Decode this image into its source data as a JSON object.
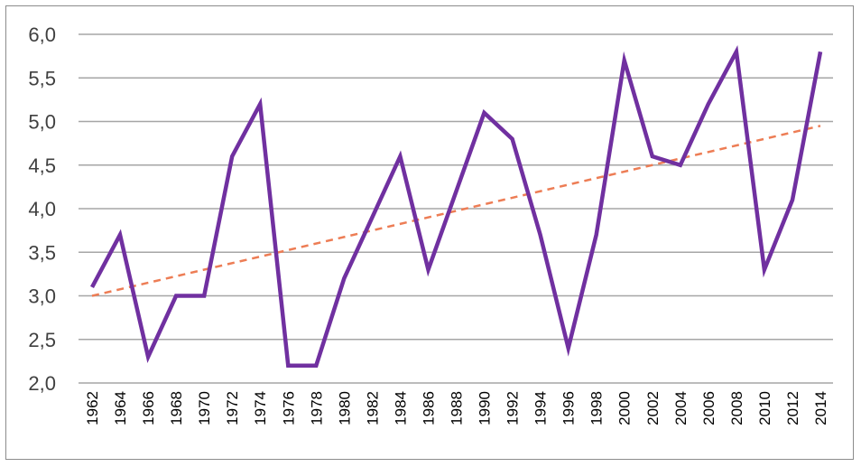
{
  "chart_data": {
    "type": "line",
    "title": "",
    "xlabel": "",
    "ylabel": "",
    "ylim": [
      2.0,
      6.0
    ],
    "y_ticks": [
      "2,0",
      "2,5",
      "3,0",
      "3,5",
      "4,0",
      "4,5",
      "5,0",
      "5,5",
      "6,0"
    ],
    "x_tick_labels": [
      "1962",
      "1964",
      "1966",
      "1968",
      "1970",
      "1972",
      "1974",
      "1976",
      "1978",
      "1980",
      "1982",
      "1984",
      "1986",
      "1988",
      "1990",
      "1992",
      "1994",
      "1996",
      "1998",
      "2000",
      "2002",
      "2004",
      "2006",
      "2008",
      "2010",
      "2012",
      "2014"
    ],
    "x": [
      1962,
      1964,
      1966,
      1968,
      1970,
      1972,
      1974,
      1976,
      1978,
      1980,
      1982,
      1984,
      1986,
      1988,
      1990,
      1992,
      1994,
      1996,
      1998,
      2000,
      2002,
      2004,
      2006,
      2008,
      2010,
      2012,
      2014
    ],
    "series": [
      {
        "color": "#7030a0",
        "values": [
          3.1,
          3.7,
          2.3,
          3.0,
          3.0,
          4.6,
          5.2,
          2.2,
          2.2,
          3.2,
          3.9,
          4.6,
          3.3,
          4.2,
          5.1,
          4.8,
          3.7,
          2.4,
          3.7,
          5.7,
          4.6,
          4.5,
          5.2,
          5.8,
          3.3,
          4.1,
          5.8
        ]
      }
    ],
    "trendline": {
      "style": "dashed",
      "color": "#ed7d55",
      "start": 3.0,
      "end": 4.95
    },
    "grid": "horizontal",
    "legend": "none"
  }
}
